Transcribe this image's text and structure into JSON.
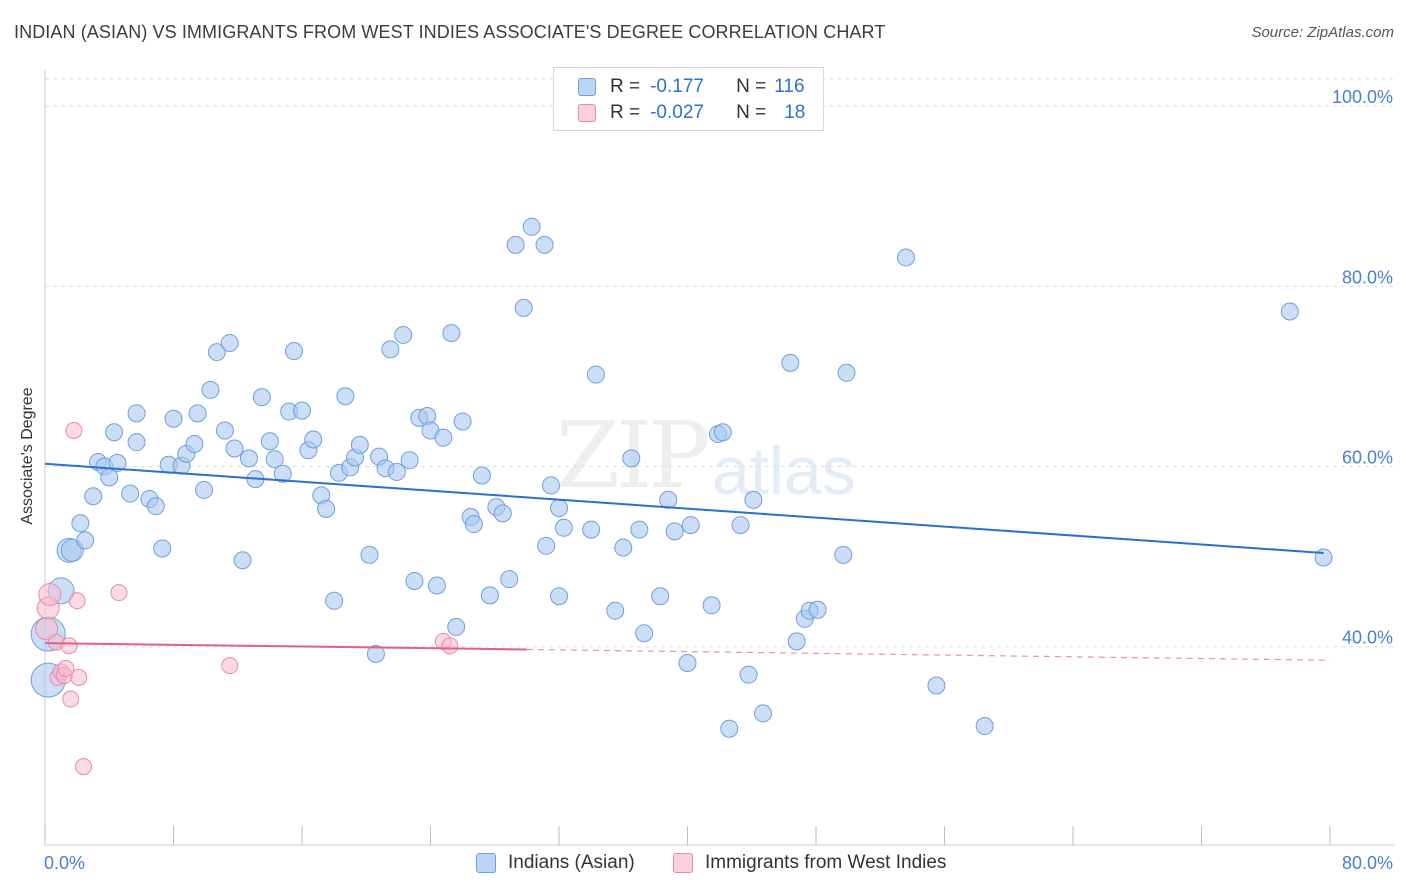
{
  "header": {
    "title": "INDIAN (ASIAN) VS IMMIGRANTS FROM WEST INDIES ASSOCIATE'S DEGREE CORRELATION CHART",
    "source": "Source: ZipAtlas.com"
  },
  "watermark": {
    "zip": "ZIP",
    "atlas": "atlas"
  },
  "legend_top": {
    "rows": [
      {
        "r_label": "R =",
        "r_value": "-0.177",
        "n_label": "N =",
        "n_value": "116"
      },
      {
        "r_label": "R =",
        "r_value": "-0.027",
        "n_label": "N =",
        "n_value": "18"
      }
    ]
  },
  "legend_bottom": {
    "items": [
      {
        "label": "Indians (Asian)"
      },
      {
        "label": "Immigrants from West Indies"
      }
    ]
  },
  "colors": {
    "blue_fill": "#a9c8f0",
    "blue_stroke": "#6f9fdc",
    "blue_line": "#2a70d0",
    "pink_fill": "#f7bcd0",
    "pink_stroke": "#e58aa9",
    "pink_line": "#e0608c",
    "grid": "#dddddd",
    "axis_text": "#4a7fd0"
  },
  "chart_data": {
    "type": "scatter",
    "title": "INDIAN (ASIAN) VS IMMIGRANTS FROM WEST INDIES ASSOCIATE'S DEGREE CORRELATION CHART",
    "xlabel": "",
    "ylabel": "Associate's Degree",
    "xlim": [
      0,
      80
    ],
    "ylim": [
      18,
      104
    ],
    "x_tick_labels": [
      "0.0%",
      "80.0%"
    ],
    "y_ticks": [
      40,
      60,
      80,
      100
    ],
    "y_tick_labels": [
      "40.0%",
      "60.0%",
      "80.0%",
      "100.0%"
    ],
    "grid": true,
    "series": [
      {
        "name": "Indians (Asian)",
        "color": "#a9c8f0",
        "points": [
          [
            0.2,
            36.3
          ],
          [
            0.2,
            41.4
          ],
          [
            1.0,
            46.2
          ],
          [
            1.5,
            50.7
          ],
          [
            1.7,
            50.7
          ],
          [
            2.2,
            53.7
          ],
          [
            2.5,
            51.8
          ],
          [
            3.0,
            56.7
          ],
          [
            3.3,
            60.5
          ],
          [
            3.7,
            60.0
          ],
          [
            4.0,
            58.8
          ],
          [
            4.3,
            63.8
          ],
          [
            4.5,
            60.4
          ],
          [
            5.3,
            57.0
          ],
          [
            5.7,
            62.7
          ],
          [
            5.7,
            65.9
          ],
          [
            6.5,
            56.4
          ],
          [
            6.9,
            55.6
          ],
          [
            7.3,
            50.9
          ],
          [
            7.7,
            60.2
          ],
          [
            8.0,
            65.3
          ],
          [
            8.5,
            60.1
          ],
          [
            8.8,
            61.4
          ],
          [
            9.3,
            62.5
          ],
          [
            9.5,
            65.9
          ],
          [
            9.9,
            57.4
          ],
          [
            10.3,
            68.5
          ],
          [
            10.7,
            72.7
          ],
          [
            11.2,
            64.0
          ],
          [
            11.5,
            73.7
          ],
          [
            11.8,
            62.0
          ],
          [
            12.3,
            49.6
          ],
          [
            12.7,
            60.9
          ],
          [
            13.1,
            58.6
          ],
          [
            13.5,
            67.7
          ],
          [
            14.0,
            62.8
          ],
          [
            14.3,
            60.8
          ],
          [
            14.8,
            59.2
          ],
          [
            15.2,
            66.1
          ],
          [
            15.5,
            72.8
          ],
          [
            16.0,
            66.2
          ],
          [
            16.4,
            61.8
          ],
          [
            16.7,
            63.0
          ],
          [
            17.2,
            56.8
          ],
          [
            17.5,
            55.3
          ],
          [
            18.0,
            45.1
          ],
          [
            18.3,
            59.3
          ],
          [
            18.7,
            67.8
          ],
          [
            19.0,
            59.9
          ],
          [
            19.3,
            61.0
          ],
          [
            19.6,
            62.4
          ],
          [
            20.2,
            50.2
          ],
          [
            20.6,
            39.2
          ],
          [
            20.8,
            61.1
          ],
          [
            21.2,
            59.8
          ],
          [
            21.5,
            73.0
          ],
          [
            21.9,
            59.4
          ],
          [
            22.3,
            74.6
          ],
          [
            22.7,
            60.7
          ],
          [
            23.0,
            47.3
          ],
          [
            23.3,
            65.4
          ],
          [
            23.8,
            65.6
          ],
          [
            24.0,
            64.0
          ],
          [
            24.4,
            46.8
          ],
          [
            24.8,
            63.2
          ],
          [
            25.3,
            74.8
          ],
          [
            25.6,
            42.2
          ],
          [
            26.0,
            65.0
          ],
          [
            26.5,
            54.4
          ],
          [
            26.7,
            53.6
          ],
          [
            27.2,
            59.0
          ],
          [
            27.7,
            45.7
          ],
          [
            28.1,
            55.5
          ],
          [
            28.5,
            54.8
          ],
          [
            28.9,
            47.5
          ],
          [
            29.3,
            84.6
          ],
          [
            29.8,
            77.6
          ],
          [
            30.3,
            86.6
          ],
          [
            31.1,
            84.6
          ],
          [
            31.2,
            51.2
          ],
          [
            31.5,
            57.9
          ],
          [
            32.0,
            55.4
          ],
          [
            32.3,
            53.2
          ],
          [
            32.0,
            45.6
          ],
          [
            34.0,
            53.0
          ],
          [
            34.3,
            70.2
          ],
          [
            35.5,
            44.0
          ],
          [
            36.0,
            51.0
          ],
          [
            36.5,
            60.9
          ],
          [
            37.0,
            53.0
          ],
          [
            37.3,
            41.5
          ],
          [
            38.3,
            45.6
          ],
          [
            38.8,
            56.3
          ],
          [
            39.2,
            52.8
          ],
          [
            40.2,
            53.5
          ],
          [
            40.0,
            38.2
          ],
          [
            41.9,
            63.6
          ],
          [
            42.2,
            63.8
          ],
          [
            41.5,
            44.6
          ],
          [
            42.6,
            30.9
          ],
          [
            43.3,
            53.5
          ],
          [
            43.8,
            36.9
          ],
          [
            44.1,
            56.3
          ],
          [
            44.7,
            32.6
          ],
          [
            46.4,
            71.5
          ],
          [
            46.8,
            40.6
          ],
          [
            47.3,
            43.1
          ],
          [
            47.6,
            44.0
          ],
          [
            48.1,
            44.1
          ],
          [
            49.9,
            70.4
          ],
          [
            49.7,
            50.2
          ],
          [
            53.6,
            83.2
          ],
          [
            55.5,
            35.7
          ],
          [
            58.5,
            31.2
          ],
          [
            77.5,
            77.2
          ],
          [
            79.6,
            49.9
          ]
        ],
        "trend": {
          "x": [
            0,
            79.6
          ],
          "y": [
            60.3,
            50.4
          ]
        }
      },
      {
        "name": "Immigrants from West Indies",
        "color": "#f7bcd0",
        "points": [
          [
            0.1,
            42.0
          ],
          [
            0.2,
            44.3
          ],
          [
            0.3,
            45.8
          ],
          [
            0.7,
            40.5
          ],
          [
            0.8,
            36.6
          ],
          [
            1.0,
            37.2
          ],
          [
            1.2,
            36.8
          ],
          [
            1.3,
            37.6
          ],
          [
            1.5,
            40.1
          ],
          [
            1.6,
            34.2
          ],
          [
            1.8,
            64.0
          ],
          [
            2.0,
            45.1
          ],
          [
            2.1,
            36.6
          ],
          [
            2.4,
            26.7
          ],
          [
            4.6,
            46.0
          ],
          [
            11.5,
            37.9
          ],
          [
            24.8,
            40.6
          ],
          [
            25.2,
            40.1
          ]
        ],
        "trend": {
          "x": [
            0,
            30
          ],
          "y": [
            40.4,
            39.7
          ]
        },
        "trend_dashed": {
          "x": [
            30,
            80
          ],
          "y": [
            39.7,
            38.5
          ]
        }
      }
    ]
  }
}
